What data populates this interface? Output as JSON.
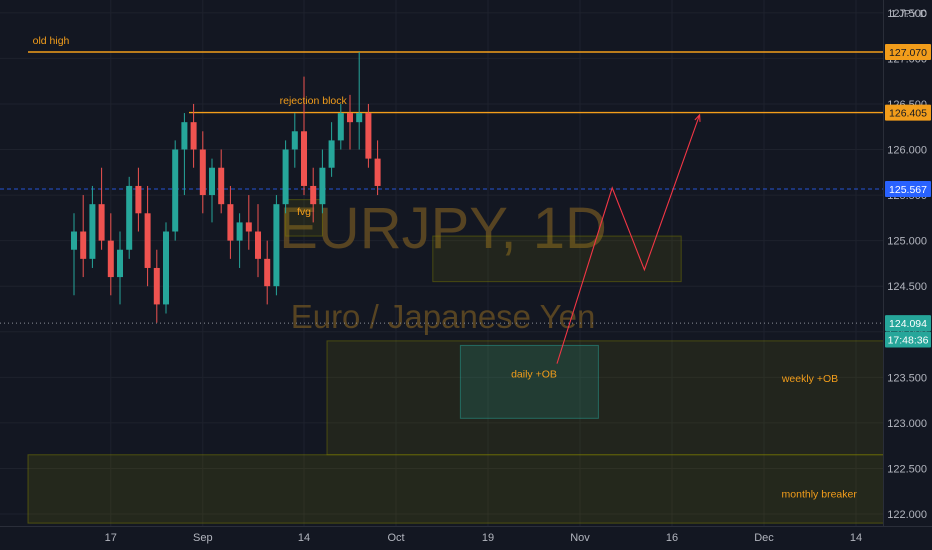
{
  "chart_data": {
    "type": "candlestick",
    "symbol_label": "1 JPY D",
    "watermark": {
      "title": "EURJPY, 1D",
      "subtitle": "Euro / Japanese Yen"
    },
    "x_ticks": [
      {
        "i": 4,
        "label": "17"
      },
      {
        "i": 14,
        "label": "Sep"
      },
      {
        "i": 25,
        "label": "14"
      },
      {
        "i": 35,
        "label": "Oct"
      },
      {
        "i": 45,
        "label": "19"
      },
      {
        "i": 55,
        "label": "Nov"
      },
      {
        "i": 65,
        "label": "16"
      },
      {
        "i": 75,
        "label": "Dec"
      },
      {
        "i": 85,
        "label": "14"
      }
    ],
    "y_ticks": [
      {
        "value": 127.5,
        "label": "127.500"
      },
      {
        "value": 127.0,
        "label": "127.000"
      },
      {
        "value": 126.5,
        "label": "126.500"
      },
      {
        "value": 126.0,
        "label": "126.000"
      },
      {
        "value": 125.5,
        "label": "125.500"
      },
      {
        "value": 125.0,
        "label": "125.000"
      },
      {
        "value": 124.5,
        "label": "124.500"
      },
      {
        "value": 124.0,
        "label": "124.000"
      },
      {
        "value": 123.5,
        "label": "123.500"
      },
      {
        "value": 123.0,
        "label": "123.000"
      },
      {
        "value": 122.5,
        "label": "122.500"
      },
      {
        "value": 122.0,
        "label": "122.000"
      }
    ],
    "price_tags": [
      {
        "value": 127.07,
        "label": "127.070",
        "bg": "#f29d1b",
        "fg": "#131722"
      },
      {
        "value": 126.405,
        "label": "126.405",
        "bg": "#f29d1b",
        "fg": "#131722"
      },
      {
        "value": 125.567,
        "label": "125.567",
        "bg": "#2962ff",
        "fg": "#ffffff"
      },
      {
        "value": 124.094,
        "label": "124.094",
        "bg": "#26a69a",
        "fg": "#ffffff"
      },
      {
        "value": 123.915,
        "label": "17:48:36",
        "bg": "#26a69a",
        "fg": "#ffffff"
      }
    ],
    "horizontal_lines": [
      {
        "price": 127.07,
        "from_i": -5,
        "label": "old high",
        "label_i": -2.5,
        "label_price": 127.16
      },
      {
        "price": 126.405,
        "from_i": 12.5,
        "label": "rejection block",
        "label_i": 26,
        "label_price": 126.5
      }
    ],
    "current_price_line": 125.567,
    "last_price_line": 124.094,
    "zones": [
      {
        "name": "fvg",
        "label": "fvg",
        "i1": 23,
        "i2": 27,
        "top": 125.45,
        "bottom": 125.05,
        "label_i": 25,
        "label_price": 125.28
      },
      {
        "name": "rejection-zone",
        "label": "",
        "i1": 39,
        "i2": 66,
        "top": 125.05,
        "bottom": 124.55
      },
      {
        "name": "weekly-ob",
        "label": "weekly +OB",
        "i1": 27.5,
        "i2": 120,
        "top": 123.9,
        "bottom": 122.65,
        "label_i": 80,
        "label_price": 123.45
      },
      {
        "name": "daily-ob",
        "label": "daily +OB",
        "i1": 42,
        "i2": 57,
        "top": 123.85,
        "bottom": 123.05,
        "label_i": 50,
        "label_price": 123.5
      },
      {
        "name": "monthly-breaker",
        "label": "monthly breaker",
        "i1": -5,
        "i2": 120,
        "top": 122.65,
        "bottom": 121.9,
        "label_i": 81,
        "label_price": 122.18
      }
    ],
    "projection": [
      {
        "i": 52.5,
        "price": 123.65
      },
      {
        "i": 58.5,
        "price": 125.58
      },
      {
        "i": 62,
        "price": 124.68
      },
      {
        "i": 68,
        "price": 126.38
      }
    ],
    "candles": [
      {
        "o": 124.9,
        "h": 125.3,
        "l": 124.4,
        "c": 125.1
      },
      {
        "o": 125.1,
        "h": 125.5,
        "l": 124.6,
        "c": 124.8
      },
      {
        "o": 124.8,
        "h": 125.6,
        "l": 124.7,
        "c": 125.4
      },
      {
        "o": 125.4,
        "h": 125.8,
        "l": 124.9,
        "c": 125.0
      },
      {
        "o": 125.0,
        "h": 125.3,
        "l": 124.4,
        "c": 124.6
      },
      {
        "o": 124.6,
        "h": 125.1,
        "l": 124.3,
        "c": 124.9
      },
      {
        "o": 124.9,
        "h": 125.7,
        "l": 124.8,
        "c": 125.6
      },
      {
        "o": 125.6,
        "h": 125.8,
        "l": 125.1,
        "c": 125.3
      },
      {
        "o": 125.3,
        "h": 125.6,
        "l": 124.5,
        "c": 124.7
      },
      {
        "o": 124.7,
        "h": 124.9,
        "l": 124.1,
        "c": 124.3
      },
      {
        "o": 124.3,
        "h": 125.2,
        "l": 124.2,
        "c": 125.1
      },
      {
        "o": 125.1,
        "h": 126.1,
        "l": 125.0,
        "c": 126.0
      },
      {
        "o": 126.0,
        "h": 126.4,
        "l": 125.5,
        "c": 126.3
      },
      {
        "o": 126.3,
        "h": 126.5,
        "l": 125.8,
        "c": 126.0
      },
      {
        "o": 126.0,
        "h": 126.2,
        "l": 125.3,
        "c": 125.5
      },
      {
        "o": 125.5,
        "h": 125.9,
        "l": 125.2,
        "c": 125.8
      },
      {
        "o": 125.8,
        "h": 126.0,
        "l": 125.3,
        "c": 125.4
      },
      {
        "o": 125.4,
        "h": 125.6,
        "l": 124.8,
        "c": 125.0
      },
      {
        "o": 125.0,
        "h": 125.3,
        "l": 124.7,
        "c": 125.2
      },
      {
        "o": 125.2,
        "h": 125.5,
        "l": 124.9,
        "c": 125.1
      },
      {
        "o": 125.1,
        "h": 125.4,
        "l": 124.6,
        "c": 124.8
      },
      {
        "o": 124.8,
        "h": 125.0,
        "l": 124.3,
        "c": 124.5
      },
      {
        "o": 124.5,
        "h": 125.5,
        "l": 124.4,
        "c": 125.4
      },
      {
        "o": 125.4,
        "h": 126.1,
        "l": 125.3,
        "c": 126.0
      },
      {
        "o": 126.0,
        "h": 126.4,
        "l": 125.8,
        "c": 126.2
      },
      {
        "o": 126.2,
        "h": 126.8,
        "l": 125.5,
        "c": 125.6
      },
      {
        "o": 125.6,
        "h": 125.8,
        "l": 125.2,
        "c": 125.4
      },
      {
        "o": 125.4,
        "h": 126.0,
        "l": 125.3,
        "c": 125.8
      },
      {
        "o": 125.8,
        "h": 126.3,
        "l": 125.7,
        "c": 126.1
      },
      {
        "o": 126.1,
        "h": 126.5,
        "l": 126.0,
        "c": 126.4
      },
      {
        "o": 126.4,
        "h": 126.6,
        "l": 126.0,
        "c": 126.3
      },
      {
        "o": 126.3,
        "h": 127.07,
        "l": 126.0,
        "c": 126.4
      },
      {
        "o": 126.4,
        "h": 126.5,
        "l": 125.8,
        "c": 125.9
      },
      {
        "o": 125.9,
        "h": 126.1,
        "l": 125.5,
        "c": 125.6
      }
    ]
  }
}
